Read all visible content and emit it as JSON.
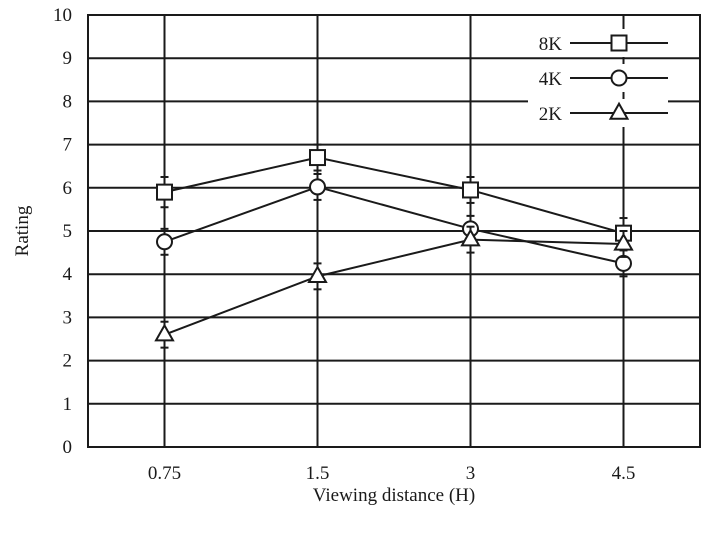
{
  "chart_data": {
    "type": "line",
    "title": "",
    "xlabel": "Viewing distance (H)",
    "ylabel": "Rating",
    "categories": [
      "0.75",
      "1.5",
      "3",
      "4.5"
    ],
    "ylim": [
      0,
      10
    ],
    "yticks": [
      0,
      1,
      2,
      3,
      4,
      5,
      6,
      7,
      8,
      9,
      10
    ],
    "grid": true,
    "legend_position": "top-right",
    "series": [
      {
        "name": "8K",
        "marker": "square",
        "values": [
          5.9,
          6.7,
          5.95,
          4.95
        ],
        "error": [
          0.35,
          0.3,
          0.3,
          0.35
        ]
      },
      {
        "name": "4K",
        "marker": "circle",
        "values": [
          4.75,
          6.02,
          5.05,
          4.25
        ],
        "error": [
          0.3,
          0.3,
          0.3,
          0.3
        ]
      },
      {
        "name": "2K",
        "marker": "triangle",
        "values": [
          2.6,
          3.95,
          4.8,
          4.7
        ],
        "error": [
          0.3,
          0.3,
          0.3,
          0.3
        ]
      }
    ]
  }
}
